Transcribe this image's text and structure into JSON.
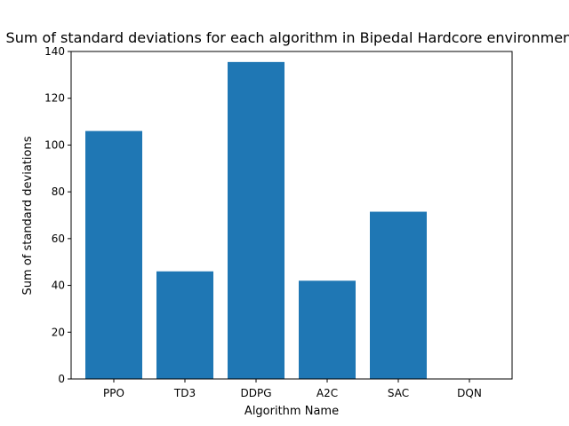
{
  "chart_data": {
    "type": "bar",
    "title": "Sum of standard deviations for each algorithm in Bipedal Hardcore environment",
    "xlabel": "Algorithm Name",
    "ylabel": "Sum of standard deviations",
    "categories": [
      "PPO",
      "TD3",
      "DDPG",
      "A2C",
      "SAC",
      "DQN"
    ],
    "values": [
      106,
      46,
      135.5,
      42,
      71.5,
      0
    ],
    "ylim": [
      0,
      140
    ],
    "yticks": [
      0,
      20,
      40,
      60,
      80,
      100,
      120,
      140
    ],
    "bar_color": "#1f77b4",
    "grid": false,
    "legend": "none"
  }
}
